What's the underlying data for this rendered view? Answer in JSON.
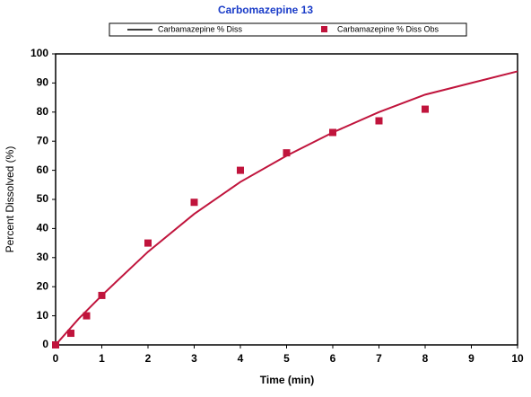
{
  "chart_data": {
    "type": "line",
    "title": "Carbomazepine 13",
    "x_label": "Time (min)",
    "y_label": "Percent Dissolved (%)",
    "xlim": [
      0,
      10
    ],
    "xticks": [
      0,
      1,
      2,
      3,
      4,
      5,
      6,
      7,
      8,
      9,
      10
    ],
    "ylim": [
      0,
      100
    ],
    "yticks": [
      0,
      10,
      20,
      30,
      40,
      50,
      60,
      70,
      80,
      90,
      100
    ],
    "series": [
      {
        "name": "Carbamazepine % Diss",
        "color": "#c0143c",
        "mode": "line",
        "x": [
          0,
          0.5,
          1,
          2,
          3,
          4,
          5,
          6,
          7,
          8,
          9,
          10
        ],
        "values": [
          0,
          9,
          17,
          32,
          45,
          56,
          65,
          73,
          80,
          86,
          90,
          94
        ]
      },
      {
        "name": "Carbamazepine % Diss Obs",
        "color": "#c0143c",
        "mode": "markers",
        "x": [
          0,
          0.33,
          0.67,
          1,
          2,
          3,
          4,
          5,
          6,
          7,
          8
        ],
        "values": [
          0,
          4,
          10,
          17,
          35,
          49,
          60,
          66,
          73,
          77,
          81
        ]
      }
    ]
  }
}
